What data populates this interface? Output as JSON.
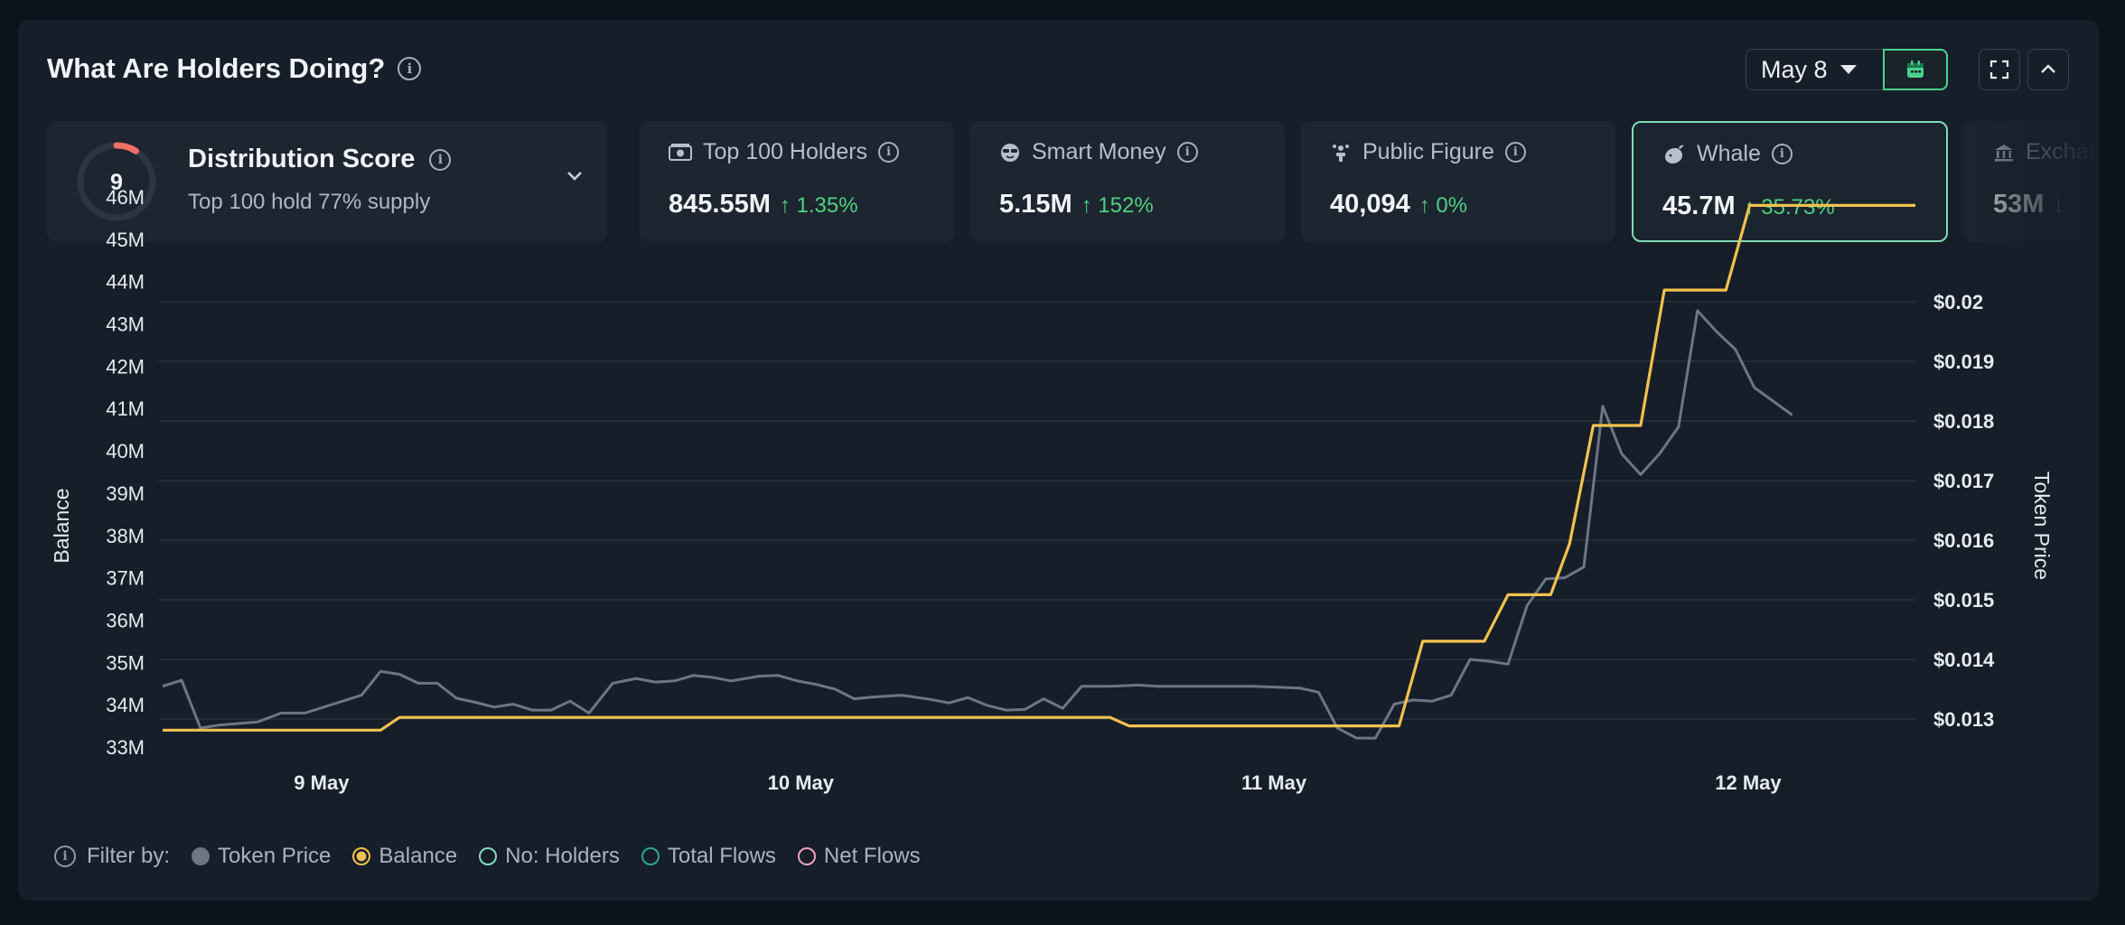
{
  "header": {
    "title": "What Are Holders Doing?",
    "date_label": "May 8"
  },
  "icons": {
    "info": "info-icon",
    "calendar": "calendar-icon",
    "fullscreen": "fullscreen-icon",
    "collapse": "chevron-up-icon",
    "expand": "chevron-down-icon"
  },
  "distribution": {
    "score": "9",
    "score_fraction": 0.09,
    "title": "Distribution Score",
    "subtitle": "Top 100 hold 77% supply"
  },
  "cards": [
    {
      "label": "Top 100 Holders",
      "value": "845.55M",
      "change": "1.35%",
      "icon": "money-icon",
      "selected": false
    },
    {
      "label": "Smart Money",
      "value": "5.15M",
      "change": "152%",
      "icon": "sunglasses-icon",
      "selected": false
    },
    {
      "label": "Public Figure",
      "value": "40,094",
      "change": "0%",
      "icon": "stage-icon",
      "selected": false
    },
    {
      "label": "Whale",
      "value": "45.7M",
      "change": "35.73%",
      "icon": "whale-icon",
      "selected": true
    },
    {
      "label": "Exchange",
      "value": "53M",
      "change": "",
      "icon": "bank-icon",
      "selected": false
    }
  ],
  "legend": {
    "label": "Filter by:",
    "items": [
      {
        "name": "Token Price",
        "color": "#6c7685",
        "active": true
      },
      {
        "name": "Balance",
        "color": "#f2c14e",
        "active": true
      },
      {
        "name": "No: Holders",
        "color": "#7fdcc5",
        "active": false
      },
      {
        "name": "Total Flows",
        "color": "#2fa88e",
        "active": false
      },
      {
        "name": "Net Flows",
        "color": "#f2a3c7",
        "active": false
      }
    ]
  },
  "colors": {
    "positive": "#4fd17f",
    "balance": "#f2c14e",
    "price": "#6c7685",
    "accent": "#49d38d"
  },
  "chart_data": {
    "type": "line",
    "ylabel_left": "Balance",
    "ylabel_right": "Token Price",
    "y_left_ticks": [
      "33M",
      "34M",
      "35M",
      "36M",
      "37M",
      "38M",
      "39M",
      "40M",
      "41M",
      "42M",
      "43M",
      "44M",
      "45M",
      "46M"
    ],
    "y_left_range": [
      33,
      46
    ],
    "y_right_ticks": [
      "$0.013",
      "$0.014",
      "$0.015",
      "$0.016",
      "$0.017",
      "$0.018",
      "$0.019",
      "$0.02"
    ],
    "y_right_range": [
      0.0125,
      0.0205
    ],
    "x_labels": [
      {
        "label": "9 May",
        "pos": 0.3
      },
      {
        "label": "10 May",
        "pos": 1.3
      },
      {
        "label": "11 May",
        "pos": 2.3
      },
      {
        "label": "12 May",
        "pos": 3.3
      }
    ],
    "x_range": [
      0,
      3.7
    ],
    "grid": true,
    "series": [
      {
        "name": "Balance",
        "color": "#f2c14e",
        "points": [
          [
            0,
            33.4
          ],
          [
            0.46,
            33.4
          ],
          [
            0.5,
            33.7
          ],
          [
            1.0,
            33.7
          ],
          [
            1.5,
            33.7
          ],
          [
            1.9,
            33.7
          ],
          [
            2.0,
            33.7
          ],
          [
            2.04,
            33.5
          ],
          [
            2.5,
            33.5
          ],
          [
            2.61,
            33.5
          ],
          [
            2.66,
            35.5
          ],
          [
            2.79,
            35.5
          ],
          [
            2.84,
            36.6
          ],
          [
            2.93,
            36.6
          ],
          [
            2.97,
            37.8
          ],
          [
            3.02,
            40.6
          ],
          [
            3.12,
            40.6
          ],
          [
            3.17,
            43.8
          ],
          [
            3.3,
            43.8
          ],
          [
            3.35,
            45.8
          ],
          [
            3.7,
            45.8
          ]
        ]
      },
      {
        "name": "Token Price",
        "color": "#6c7685",
        "points": [
          [
            0,
            0.01355
          ],
          [
            0.04,
            0.01365
          ],
          [
            0.08,
            0.01285
          ],
          [
            0.12,
            0.0129
          ],
          [
            0.2,
            0.01295
          ],
          [
            0.25,
            0.0131
          ],
          [
            0.3,
            0.0131
          ],
          [
            0.36,
            0.01325
          ],
          [
            0.42,
            0.0134
          ],
          [
            0.46,
            0.0138
          ],
          [
            0.5,
            0.01375
          ],
          [
            0.54,
            0.0136
          ],
          [
            0.58,
            0.0136
          ],
          [
            0.62,
            0.01335
          ],
          [
            0.66,
            0.01328
          ],
          [
            0.7,
            0.0132
          ],
          [
            0.74,
            0.01325
          ],
          [
            0.78,
            0.01315
          ],
          [
            0.82,
            0.01315
          ],
          [
            0.86,
            0.0133
          ],
          [
            0.9,
            0.0131
          ],
          [
            0.95,
            0.0136
          ],
          [
            1.0,
            0.01368
          ],
          [
            1.04,
            0.01362
          ],
          [
            1.08,
            0.01364
          ],
          [
            1.12,
            0.01373
          ],
          [
            1.16,
            0.0137
          ],
          [
            1.2,
            0.01364
          ],
          [
            1.26,
            0.01372
          ],
          [
            1.3,
            0.01373
          ],
          [
            1.34,
            0.01364
          ],
          [
            1.38,
            0.01358
          ],
          [
            1.42,
            0.0135
          ],
          [
            1.46,
            0.01334
          ],
          [
            1.5,
            0.01337
          ],
          [
            1.56,
            0.0134
          ],
          [
            1.62,
            0.01333
          ],
          [
            1.66,
            0.01327
          ],
          [
            1.7,
            0.01336
          ],
          [
            1.74,
            0.01323
          ],
          [
            1.78,
            0.01315
          ],
          [
            1.82,
            0.01316
          ],
          [
            1.86,
            0.01334
          ],
          [
            1.9,
            0.01318
          ],
          [
            1.94,
            0.01355
          ],
          [
            2.0,
            0.01355
          ],
          [
            2.06,
            0.01357
          ],
          [
            2.1,
            0.01355
          ],
          [
            2.2,
            0.01355
          ],
          [
            2.3,
            0.01355
          ],
          [
            2.4,
            0.01352
          ],
          [
            2.44,
            0.01345
          ],
          [
            2.48,
            0.01285
          ],
          [
            2.52,
            0.01268
          ],
          [
            2.56,
            0.01268
          ],
          [
            2.6,
            0.01325
          ],
          [
            2.64,
            0.01332
          ],
          [
            2.68,
            0.0133
          ],
          [
            2.72,
            0.0134
          ],
          [
            2.76,
            0.014
          ],
          [
            2.8,
            0.01397
          ],
          [
            2.84,
            0.01392
          ],
          [
            2.88,
            0.0149
          ],
          [
            2.92,
            0.01535
          ],
          [
            2.96,
            0.01537
          ],
          [
            3.0,
            0.01555
          ],
          [
            3.04,
            0.01825
          ],
          [
            3.08,
            0.01745
          ],
          [
            3.12,
            0.0171
          ],
          [
            3.16,
            0.01745
          ],
          [
            3.2,
            0.0179
          ],
          [
            3.24,
            0.01985
          ],
          [
            3.28,
            0.0195
          ],
          [
            3.32,
            0.0192
          ],
          [
            3.36,
            0.01856
          ],
          [
            3.4,
            0.01833
          ],
          [
            3.44,
            0.0181
          ]
        ]
      }
    ]
  }
}
